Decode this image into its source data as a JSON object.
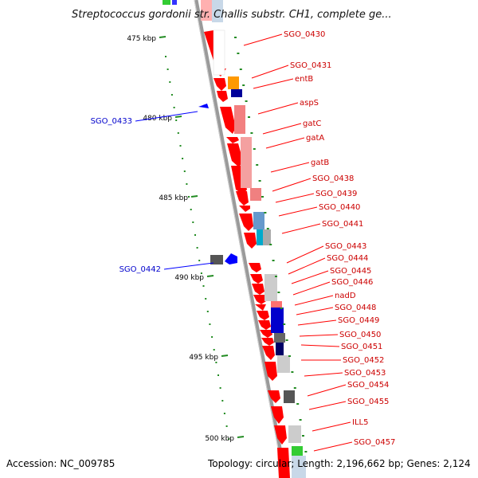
{
  "title": "Streptococcus gordonii str. Challis substr. CH1, complete ge...",
  "footer": {
    "accession": "Accession: NC_009785",
    "summary": "Topology: circular; Length: 2,196,662 bp; Genes: 2,124"
  },
  "colors": {
    "gene_forward": "#ff0000",
    "gene_reverse": "#0000ff",
    "label_forward": "#cc0000",
    "label_reverse": "#0000cc",
    "backbone": "#9a9a9a",
    "tick": "#228b22"
  },
  "kbp_ticks": [
    {
      "label": "475 kbp"
    },
    {
      "label": "480 kbp"
    },
    {
      "label": "485 kbp"
    },
    {
      "label": "490 kbp"
    },
    {
      "label": "495 kbp"
    },
    {
      "label": "500 kbp"
    }
  ],
  "forward_labels": [
    "SGO_0430",
    "SGO_0431",
    "entB",
    "aspS",
    "gatC",
    "gatA",
    "gatB",
    "SGO_0438",
    "SGO_0439",
    "SGO_0440",
    "SGO_0441",
    "SGO_0443",
    "SGO_0444",
    "SGO_0445",
    "SGO_0446",
    "nadD",
    "SGO_0448",
    "SGO_0449",
    "SGO_0450",
    "SGO_0451",
    "SGO_0452",
    "SGO_0453",
    "SGO_0454",
    "SGO_0455",
    "ILL5",
    "SGO_0457"
  ],
  "reverse_labels": [
    "SGO_0433",
    "SGO_0442"
  ]
}
